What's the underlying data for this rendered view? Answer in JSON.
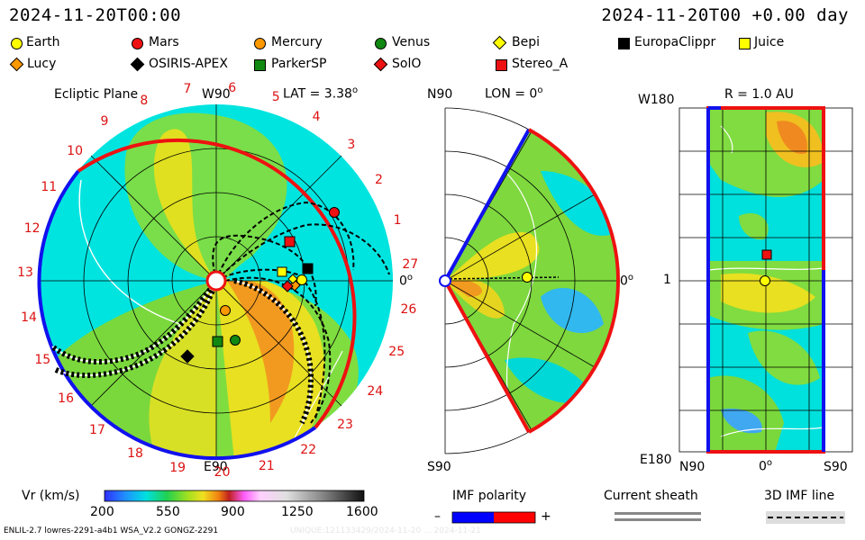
{
  "header": {
    "datetime_left": "2024-11-20T00:00",
    "datetime_right": "2024-11-20T00 +0.00 day"
  },
  "legend": [
    {
      "label": "Earth",
      "shape": "circle",
      "color": "#ffff00"
    },
    {
      "label": "Mars",
      "shape": "circle",
      "color": "#ee1111"
    },
    {
      "label": "Mercury",
      "shape": "circle",
      "color": "#ff9900"
    },
    {
      "label": "Venus",
      "shape": "circle",
      "color": "#118811"
    },
    {
      "label": "Bepi",
      "shape": "diamond",
      "color": "#ffff00"
    },
    {
      "label": "EuropaClippr",
      "shape": "square",
      "color": "#000000"
    },
    {
      "label": "Juice",
      "shape": "square",
      "color": "#ffff00"
    },
    {
      "label": "Lucy",
      "shape": "diamond",
      "color": "#ff9900"
    },
    {
      "label": "OSIRIS-APEX",
      "shape": "diamond",
      "color": "#000000"
    },
    {
      "label": "ParkerSP",
      "shape": "square",
      "color": "#118811"
    },
    {
      "label": "SolO",
      "shape": "diamond",
      "color": "#ee1111"
    },
    {
      "label": "Stereo_A",
      "shape": "square",
      "color": "#ee1111"
    }
  ],
  "ecliptic": {
    "title": "Ecliptic Plane",
    "top_label": "W90",
    "lat_label": "LAT = 3.38",
    "lat_sup": "o",
    "right_label": "0",
    "right_sup": "o",
    "bottom_label": "E90",
    "carrington_numbers": [
      "27",
      "1",
      "2",
      "3",
      "4",
      "5",
      "6",
      "7",
      "8",
      "9",
      "10",
      "11",
      "12",
      "13",
      "14",
      "15",
      "16",
      "17",
      "18",
      "19",
      "20",
      "21",
      "22",
      "23",
      "24",
      "25",
      "26"
    ]
  },
  "meridional": {
    "top_left": "N90",
    "lon_label": "LON = 0",
    "lon_sup": "o",
    "right_label": "0",
    "right_sup": "o",
    "bottom_left": "S90"
  },
  "map": {
    "r_label": "R = 1.0 AU",
    "top_left": "W180",
    "left_mid": "1",
    "bottom_left": "E180",
    "x_labels": [
      "N90",
      "0",
      "S90"
    ],
    "x_sup": "o"
  },
  "colorbar": {
    "title": "Vr (km/s)",
    "ticks": [
      "200",
      "550",
      "900",
      "1250",
      "1600"
    ]
  },
  "imf": {
    "title": "IMF polarity",
    "minus": "–",
    "plus": "+",
    "colors": {
      "negative": "#0000ff",
      "positive": "#ff0000"
    }
  },
  "sheath": {
    "title": "Current sheath"
  },
  "imfline": {
    "title": "3D IMF line"
  },
  "footer": {
    "left": "ENLIL-2.7 lowres-2291-a4b1 WSA_V2.2 GONGZ-2291",
    "right": "UNIQUE:121133429/2024-11-20 ... 2024-11-21"
  },
  "colors": {
    "background_wind": "#00e8e0",
    "green": "#7ddd3a",
    "yellow": "#e8e020",
    "orange": "#f09a20",
    "pos_polarity": "#ee1111",
    "neg_polarity": "#1111ee"
  }
}
